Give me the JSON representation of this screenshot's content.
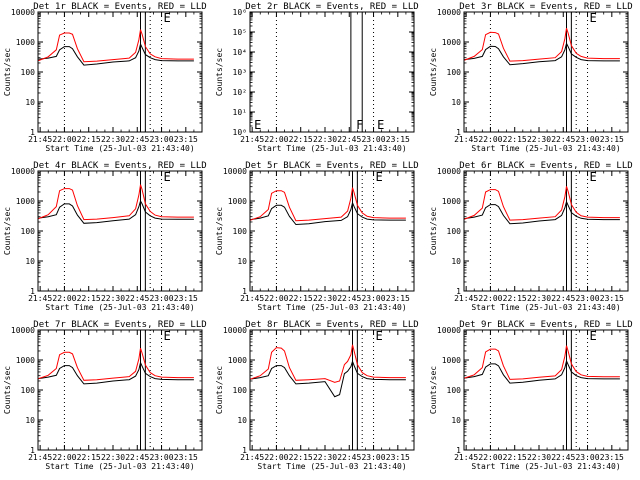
{
  "x_axis": {
    "label": "Start Time (25-Jul-03 21:43:40)",
    "tick_labels": [
      "21:45",
      "22:00",
      "22:15",
      "22:30",
      "22:45",
      "23:00",
      "23:15"
    ],
    "range": [
      "21:43:40",
      "23:25:00"
    ]
  },
  "y_axis": {
    "label": "Counts/sec",
    "scale": "log"
  },
  "colors": {
    "events": "#000000",
    "lld": "#ff0000",
    "frame": "#000000"
  },
  "chart_data": [
    {
      "type": "line",
      "title": "Det 1r BLACK = Events, RED = LLD",
      "ylim": [
        1,
        10000
      ],
      "y_ticks": [
        1,
        10,
        100,
        1000,
        10000
      ],
      "y_tick_labels": [
        "1",
        "10",
        "100",
        "1000",
        "10000"
      ],
      "dotted_x": [
        "22:00",
        "22:53",
        "23:00"
      ],
      "solid_x": [
        "22:47",
        "22:50"
      ],
      "markers": [
        {
          "text": "E",
          "x": "23:00",
          "pos": "top"
        }
      ],
      "x": [
        "21:44",
        "21:50",
        "21:55",
        "21:57",
        "22:00",
        "22:03",
        "22:05",
        "22:08",
        "22:12",
        "22:20",
        "22:30",
        "22:40",
        "22:44",
        "22:46",
        "22:47",
        "22:48",
        "22:50",
        "22:53",
        "22:56",
        "23:00",
        "23:10",
        "23:20"
      ],
      "series": [
        {
          "name": "Events",
          "values": [
            270,
            290,
            330,
            550,
            700,
            700,
            600,
            320,
            170,
            185,
            215,
            235,
            300,
            500,
            850,
            650,
            380,
            300,
            260,
            240,
            235,
            235
          ]
        },
        {
          "name": "LLD",
          "values": [
            240,
            320,
            550,
            1700,
            2000,
            2000,
            1800,
            600,
            220,
            230,
            260,
            290,
            450,
            1200,
            2600,
            1800,
            700,
            400,
            320,
            280,
            270,
            270
          ]
        }
      ]
    },
    {
      "type": "line",
      "title": "Det 2r BLACK = Events, RED = LLD",
      "ylim": [
        1,
        1000000
      ],
      "y_ticks": [
        1,
        10,
        100,
        1000,
        10000,
        100000,
        1000000
      ],
      "y_tick_labels": [
        "10⁰",
        "10¹",
        "10²",
        "10³",
        "10⁴",
        "10⁵",
        "10⁶"
      ],
      "dotted_x": [
        "22:00",
        "23:00"
      ],
      "solid_x": [
        "22:46",
        "22:53"
      ],
      "markers": [
        {
          "text": "E",
          "x": "21:45",
          "pos": "bottom"
        },
        {
          "text": "F",
          "x": "22:48",
          "pos": "bottom"
        },
        {
          "text": "E",
          "x": "23:01",
          "pos": "bottom"
        }
      ],
      "x": [],
      "series": []
    },
    {
      "type": "line",
      "title": "Det 3r BLACK = Events, RED = LLD",
      "ylim": [
        1,
        10000
      ],
      "y_ticks": [
        1,
        10,
        100,
        1000,
        10000
      ],
      "y_tick_labels": [
        "1",
        "10",
        "100",
        "1000",
        "10000"
      ],
      "dotted_x": [
        "22:00",
        "22:53",
        "23:00"
      ],
      "solid_x": [
        "22:47",
        "22:50"
      ],
      "markers": [
        {
          "text": "E",
          "x": "23:00",
          "pos": "top"
        }
      ],
      "x": [
        "21:44",
        "21:50",
        "21:55",
        "21:57",
        "22:00",
        "22:03",
        "22:05",
        "22:08",
        "22:12",
        "22:20",
        "22:30",
        "22:40",
        "22:44",
        "22:46",
        "22:47",
        "22:48",
        "22:50",
        "22:53",
        "22:56",
        "23:00",
        "23:10",
        "23:20"
      ],
      "series": [
        {
          "name": "Events",
          "values": [
            260,
            285,
            330,
            560,
            720,
            710,
            600,
            320,
            175,
            190,
            220,
            240,
            320,
            550,
            900,
            700,
            400,
            310,
            260,
            240,
            235,
            235
          ]
        },
        {
          "name": "LLD",
          "values": [
            250,
            330,
            560,
            1750,
            2100,
            2050,
            1850,
            620,
            230,
            240,
            270,
            300,
            480,
            1300,
            2900,
            2000,
            750,
            420,
            330,
            290,
            280,
            280
          ]
        }
      ]
    },
    {
      "type": "line",
      "title": "Det 4r BLACK = Events, RED = LLD",
      "ylim": [
        1,
        10000
      ],
      "y_ticks": [
        1,
        10,
        100,
        1000,
        10000
      ],
      "y_tick_labels": [
        "1",
        "10",
        "100",
        "1000",
        "10000"
      ],
      "dotted_x": [
        "22:00",
        "22:53",
        "23:00"
      ],
      "solid_x": [
        "22:47",
        "22:50"
      ],
      "markers": [
        {
          "text": "E",
          "x": "23:00",
          "pos": "top"
        }
      ],
      "x": [
        "21:44",
        "21:50",
        "21:55",
        "21:57",
        "22:00",
        "22:03",
        "22:05",
        "22:08",
        "22:12",
        "22:20",
        "22:30",
        "22:40",
        "22:44",
        "22:46",
        "22:47",
        "22:48",
        "22:50",
        "22:53",
        "22:56",
        "23:00",
        "23:10",
        "23:20"
      ],
      "series": [
        {
          "name": "Events",
          "values": [
            270,
            300,
            350,
            620,
            800,
            800,
            680,
            340,
            180,
            190,
            220,
            250,
            350,
            650,
            1000,
            800,
            430,
            320,
            270,
            250,
            245,
            245
          ]
        },
        {
          "name": "LLD",
          "values": [
            260,
            350,
            650,
            2200,
            2600,
            2600,
            2300,
            700,
            240,
            250,
            280,
            320,
            550,
            1600,
            3500,
            2400,
            800,
            450,
            340,
            300,
            290,
            290
          ]
        }
      ]
    },
    {
      "type": "line",
      "title": "Det 5r BLACK = Events, RED = LLD",
      "ylim": [
        1,
        10000
      ],
      "y_ticks": [
        1,
        10,
        100,
        1000,
        10000
      ],
      "y_tick_labels": [
        "1",
        "10",
        "100",
        "1000",
        "10000"
      ],
      "dotted_x": [
        "22:00",
        "22:53",
        "23:00"
      ],
      "solid_x": [
        "22:47",
        "22:50"
      ],
      "markers": [
        {
          "text": "E",
          "x": "23:00",
          "pos": "top"
        }
      ],
      "x": [
        "21:44",
        "21:50",
        "21:55",
        "21:57",
        "22:00",
        "22:03",
        "22:05",
        "22:08",
        "22:12",
        "22:20",
        "22:30",
        "22:40",
        "22:44",
        "22:46",
        "22:47",
        "22:48",
        "22:50",
        "22:53",
        "22:56",
        "23:00",
        "23:10",
        "23:20"
      ],
      "series": [
        {
          "name": "Events",
          "values": [
            240,
            270,
            320,
            560,
            720,
            720,
            620,
            310,
            165,
            175,
            205,
            225,
            300,
            520,
            880,
            650,
            380,
            290,
            250,
            235,
            230,
            230
          ]
        },
        {
          "name": "LLD",
          "values": [
            230,
            300,
            520,
            1800,
            2200,
            2200,
            1950,
            620,
            220,
            230,
            260,
            290,
            460,
            1250,
            2800,
            1900,
            720,
            400,
            310,
            280,
            270,
            270
          ]
        }
      ]
    },
    {
      "type": "line",
      "title": "Det 6r BLACK = Events, RED = LLD",
      "ylim": [
        1,
        10000
      ],
      "y_ticks": [
        1,
        10,
        100,
        1000,
        10000
      ],
      "y_tick_labels": [
        "1",
        "10",
        "100",
        "1000",
        "10000"
      ],
      "dotted_x": [
        "22:00",
        "22:53",
        "23:00"
      ],
      "solid_x": [
        "22:47",
        "22:50"
      ],
      "markers": [
        {
          "text": "E",
          "x": "23:00",
          "pos": "top"
        }
      ],
      "x": [
        "21:44",
        "21:50",
        "21:55",
        "21:57",
        "22:00",
        "22:03",
        "22:05",
        "22:08",
        "22:12",
        "22:20",
        "22:30",
        "22:40",
        "22:44",
        "22:46",
        "22:47",
        "22:48",
        "22:50",
        "22:53",
        "22:56",
        "23:00",
        "23:10",
        "23:20"
      ],
      "series": [
        {
          "name": "Events",
          "values": [
            260,
            290,
            340,
            600,
            760,
            760,
            650,
            330,
            175,
            185,
            215,
            240,
            330,
            600,
            950,
            720,
            410,
            310,
            265,
            245,
            240,
            240
          ]
        },
        {
          "name": "LLD",
          "values": [
            250,
            330,
            580,
            2000,
            2400,
            2400,
            2100,
            650,
            230,
            240,
            270,
            300,
            500,
            1400,
            3100,
            2100,
            760,
            420,
            320,
            290,
            280,
            280
          ]
        }
      ]
    },
    {
      "type": "line",
      "title": "Det 7r BLACK = Events, RED = LLD",
      "ylim": [
        1,
        10000
      ],
      "y_ticks": [
        1,
        10,
        100,
        1000,
        10000
      ],
      "y_tick_labels": [
        "1",
        "10",
        "100",
        "1000",
        "10000"
      ],
      "dotted_x": [
        "22:00",
        "22:53",
        "23:00"
      ],
      "solid_x": [
        "22:47",
        "22:50"
      ],
      "markers": [
        {
          "text": "E",
          "x": "23:00",
          "pos": "top"
        }
      ],
      "x": [
        "21:44",
        "21:50",
        "21:55",
        "21:57",
        "22:00",
        "22:03",
        "22:05",
        "22:08",
        "22:12",
        "22:20",
        "22:30",
        "22:40",
        "22:44",
        "22:46",
        "22:47",
        "22:48",
        "22:50",
        "22:53",
        "22:56",
        "23:00",
        "23:10",
        "23:20"
      ],
      "series": [
        {
          "name": "Events",
          "values": [
            240,
            270,
            310,
            520,
            650,
            650,
            560,
            300,
            160,
            170,
            200,
            220,
            290,
            480,
            820,
            620,
            360,
            280,
            240,
            225,
            220,
            220
          ]
        },
        {
          "name": "LLD",
          "values": [
            240,
            310,
            520,
            1500,
            1800,
            1800,
            1600,
            560,
            210,
            220,
            250,
            280,
            420,
            1100,
            2500,
            1700,
            680,
            380,
            300,
            270,
            260,
            260
          ]
        }
      ]
    },
    {
      "type": "line",
      "title": "Det 8r BLACK = Events, RED = LLD",
      "ylim": [
        1,
        10000
      ],
      "y_ticks": [
        1,
        10,
        100,
        1000,
        10000
      ],
      "y_tick_labels": [
        "1",
        "10",
        "100",
        "1000",
        "10000"
      ],
      "dotted_x": [
        "22:00",
        "22:53",
        "23:00"
      ],
      "solid_x": [
        "22:47",
        "22:50"
      ],
      "markers": [
        {
          "text": "E",
          "x": "23:00",
          "pos": "top"
        }
      ],
      "x": [
        "21:44",
        "21:50",
        "21:55",
        "21:57",
        "22:00",
        "22:03",
        "22:05",
        "22:08",
        "22:12",
        "22:20",
        "22:30",
        "22:36",
        "22:39",
        "22:42",
        "22:44",
        "22:46",
        "22:47",
        "22:48",
        "22:50",
        "22:53",
        "22:56",
        "23:00",
        "23:10",
        "23:20"
      ],
      "series": [
        {
          "name": "Events",
          "values": [
            230,
            260,
            300,
            520,
            650,
            650,
            560,
            300,
            160,
            170,
            190,
            60,
            70,
            350,
            420,
            600,
            900,
            650,
            360,
            280,
            240,
            225,
            220,
            220
          ]
        },
        {
          "name": "LLD",
          "values": [
            230,
            300,
            500,
            1800,
            2600,
            2500,
            2000,
            560,
            210,
            220,
            240,
            180,
            200,
            700,
            900,
            1500,
            3200,
            2000,
            700,
            380,
            300,
            270,
            260,
            260
          ]
        }
      ]
    },
    {
      "type": "line",
      "title": "Det 9r BLACK = Events, RED = LLD",
      "ylim": [
        1,
        10000
      ],
      "y_ticks": [
        1,
        10,
        100,
        1000,
        10000
      ],
      "y_tick_labels": [
        "1",
        "10",
        "100",
        "1000",
        "10000"
      ],
      "dotted_x": [
        "22:00",
        "22:53",
        "23:00"
      ],
      "solid_x": [
        "22:47",
        "22:50"
      ],
      "markers": [
        {
          "text": "E",
          "x": "23:00",
          "pos": "top"
        }
      ],
      "x": [
        "21:44",
        "21:50",
        "21:55",
        "21:57",
        "22:00",
        "22:03",
        "22:05",
        "22:08",
        "22:12",
        "22:20",
        "22:30",
        "22:40",
        "22:44",
        "22:46",
        "22:47",
        "22:48",
        "22:50",
        "22:53",
        "22:56",
        "23:00",
        "23:10",
        "23:20"
      ],
      "series": [
        {
          "name": "Events",
          "values": [
            250,
            280,
            330,
            580,
            740,
            740,
            640,
            320,
            170,
            180,
            210,
            235,
            320,
            560,
            930,
            700,
            400,
            300,
            260,
            240,
            235,
            235
          ]
        },
        {
          "name": "LLD",
          "values": [
            250,
            320,
            560,
            1850,
            2300,
            2300,
            2000,
            640,
            225,
            235,
            265,
            295,
            480,
            1350,
            3000,
            2000,
            740,
            410,
            320,
            285,
            275,
            275
          ]
        }
      ]
    }
  ]
}
